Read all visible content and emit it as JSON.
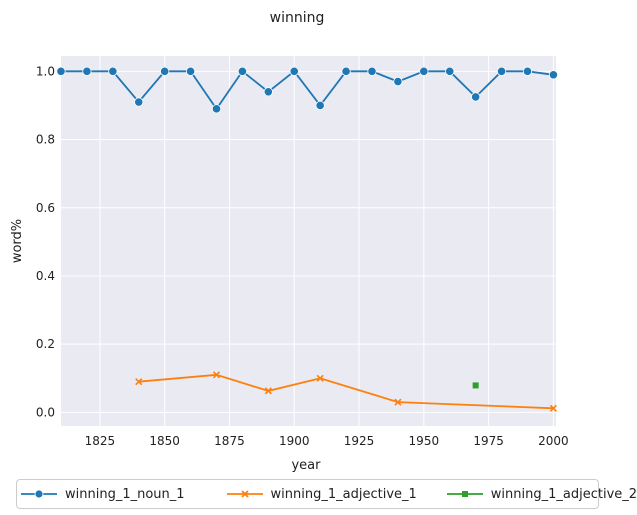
{
  "chart_data": {
    "type": "line",
    "title": "winning",
    "xlabel": "year",
    "ylabel": "word%",
    "xlim": [
      1810,
      2001
    ],
    "ylim": [
      -0.04,
      1.045
    ],
    "xticks": [
      1825,
      1850,
      1875,
      1900,
      1925,
      1950,
      1975,
      2000
    ],
    "yticks": [
      0.0,
      0.2,
      0.4,
      0.6,
      0.8,
      1.0
    ],
    "xtick_labels": [
      "1825",
      "1850",
      "1875",
      "1900",
      "1925",
      "1950",
      "1975",
      "2000"
    ],
    "ytick_labels": [
      "0.0",
      "0.2",
      "0.4",
      "0.6",
      "0.8",
      "1.0"
    ],
    "grid": true,
    "legend_position": "bottom-center",
    "series": [
      {
        "name": "winning_1_noun_1",
        "color": "#1f77b4",
        "marker": "circle",
        "x": [
          1810,
          1820,
          1830,
          1840,
          1850,
          1860,
          1870,
          1880,
          1890,
          1900,
          1910,
          1920,
          1930,
          1940,
          1950,
          1960,
          1970,
          1980,
          1990,
          2000
        ],
        "y": [
          1.0,
          1.0,
          1.0,
          0.91,
          1.0,
          1.0,
          0.89,
          1.0,
          0.94,
          1.0,
          0.9,
          1.0,
          1.0,
          0.97,
          1.0,
          1.0,
          0.925,
          1.0,
          1.0,
          0.99
        ]
      },
      {
        "name": "winning_1_adjective_1",
        "color": "#ff7f0e",
        "marker": "x",
        "x": [
          1840,
          1870,
          1890,
          1910,
          1940,
          2000
        ],
        "y": [
          0.09,
          0.11,
          0.063,
          0.1,
          0.03,
          0.012
        ]
      },
      {
        "name": "winning_1_adjective_2",
        "color": "#2ca02c",
        "marker": "square",
        "x": [
          1970
        ],
        "y": [
          0.079
        ]
      }
    ]
  }
}
